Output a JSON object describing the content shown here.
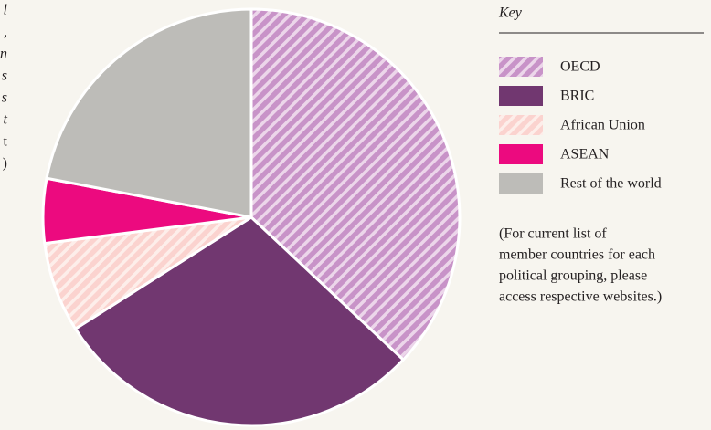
{
  "chart_data": {
    "type": "pie",
    "categories": [
      "OECD",
      "BRIC",
      "African Union",
      "ASEAN",
      "Rest of the world"
    ],
    "values": [
      37,
      29,
      7,
      5,
      22
    ],
    "colors": [
      "#c893c8",
      "#713770",
      "#fbd3cf",
      "#ec0a7f",
      "#bdbcb8"
    ],
    "stripe_colors": [
      "#ecd6ea",
      null,
      "#fdeeea",
      null,
      null
    ],
    "pattern": [
      "hatch",
      "solid",
      "hatch",
      "solid",
      "solid"
    ],
    "legend_title": "Key",
    "note": [
      "(For current list of",
      "member countries for each",
      "political grouping, please",
      "access respective websites.)"
    ],
    "side_text": [
      "l",
      ",",
      "n",
      "s",
      "s",
      "t",
      "t",
      ")"
    ]
  }
}
